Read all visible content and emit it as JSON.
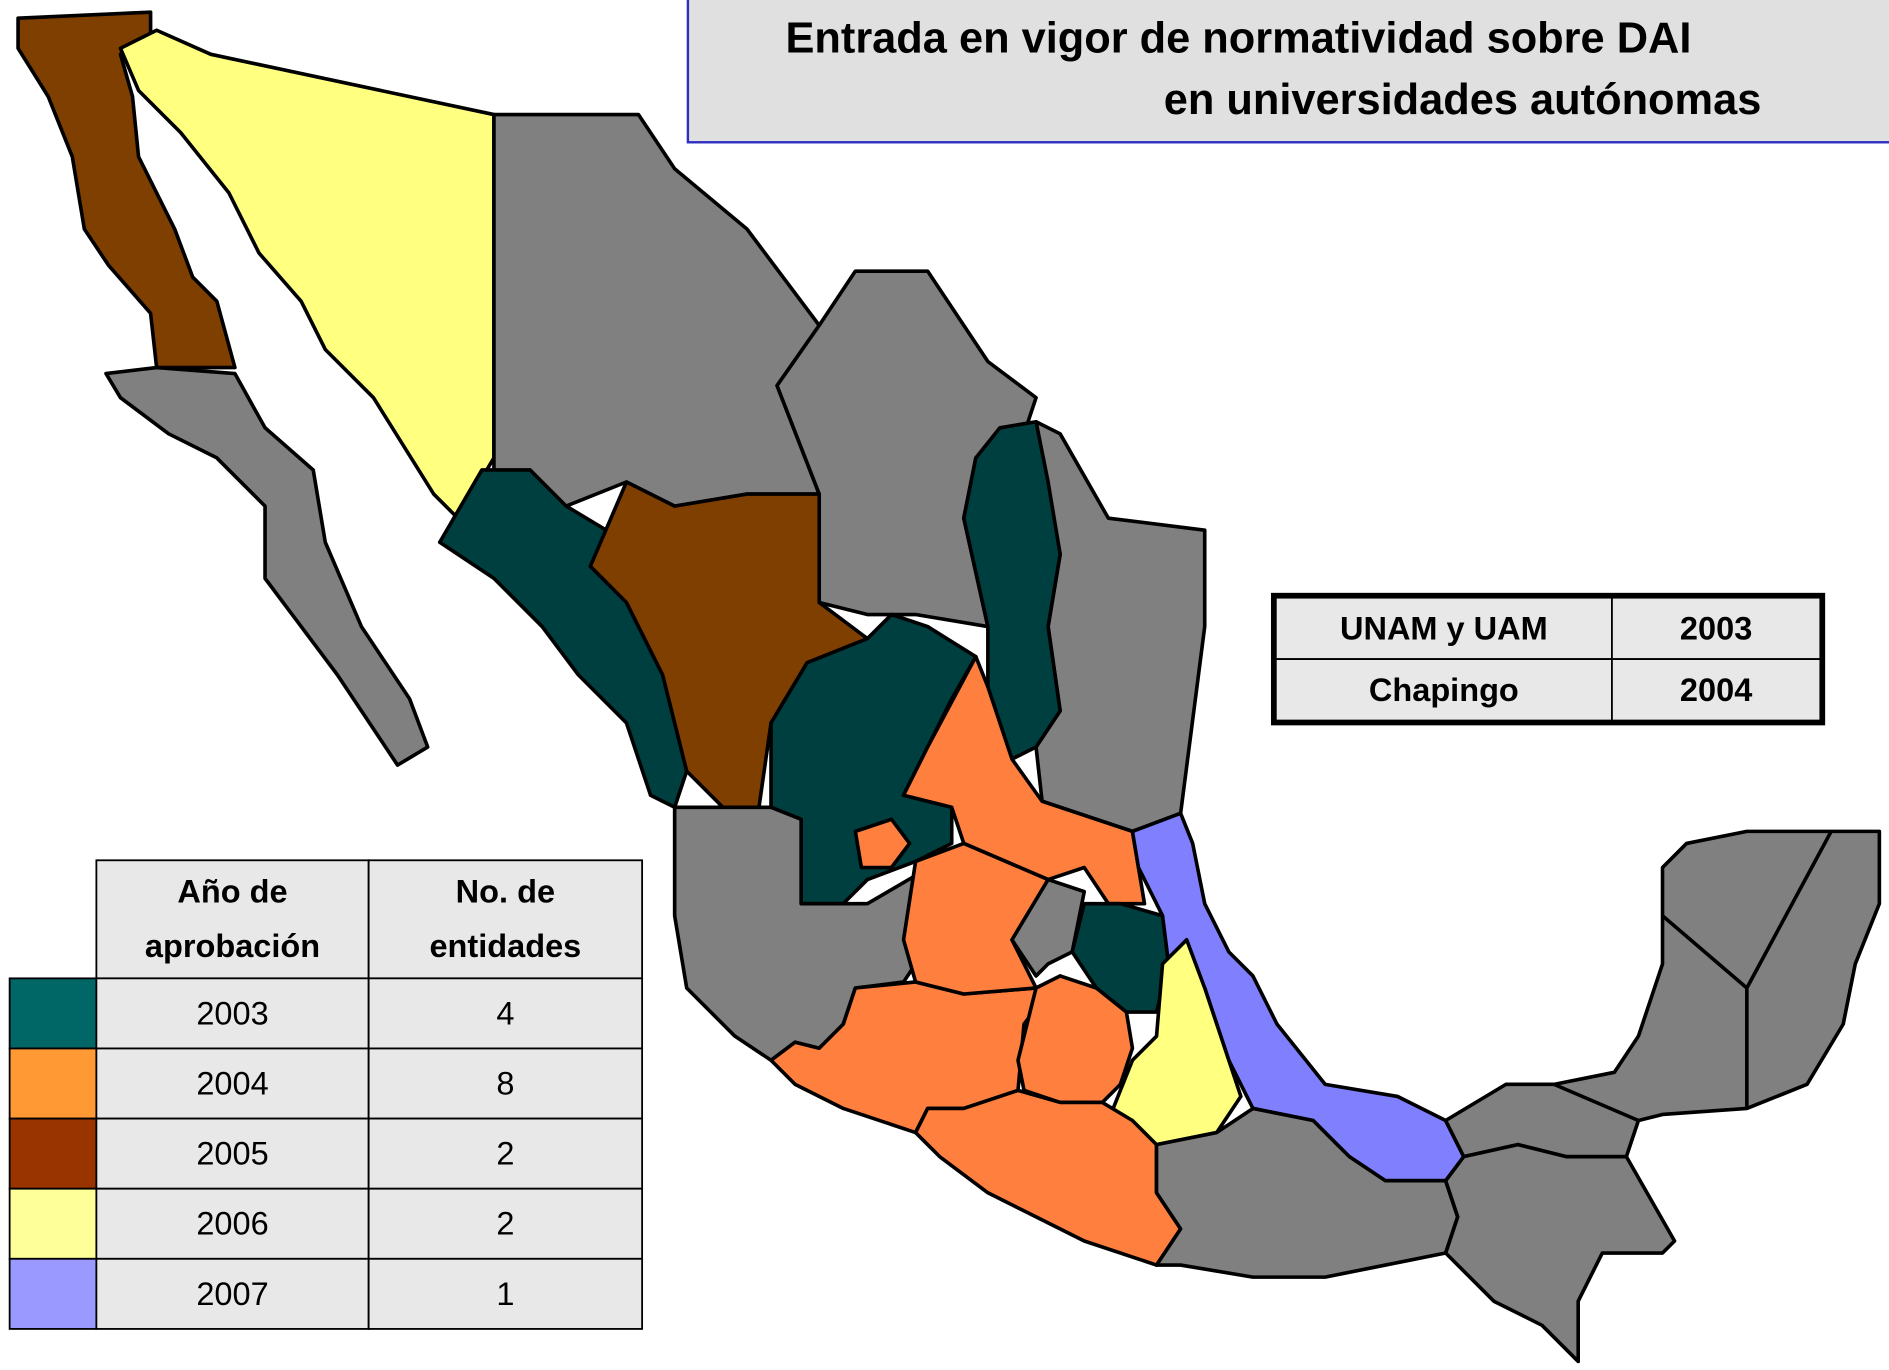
{
  "title": {
    "line1": "Entrada en vigor de normatividad sobre DAI",
    "line2": "en universidades autónomas"
  },
  "legend_table": {
    "headers": [
      [
        "Año de",
        "aprobación"
      ],
      [
        "No. de",
        "entidades"
      ]
    ],
    "rows": [
      {
        "color": "#006666",
        "year": "2003",
        "count": "4"
      },
      {
        "color": "#ff9933",
        "year": "2004",
        "count": "8"
      },
      {
        "color": "#993300",
        "year": "2005",
        "count": "2"
      },
      {
        "color": "#ffff99",
        "year": "2006",
        "count": "2"
      },
      {
        "color": "#9999ff",
        "year": "2007",
        "count": "1"
      }
    ]
  },
  "federal_table": {
    "rows": [
      [
        "UNAM y UAM",
        "2003"
      ],
      [
        "Chapingo",
        "2004"
      ]
    ]
  }
}
